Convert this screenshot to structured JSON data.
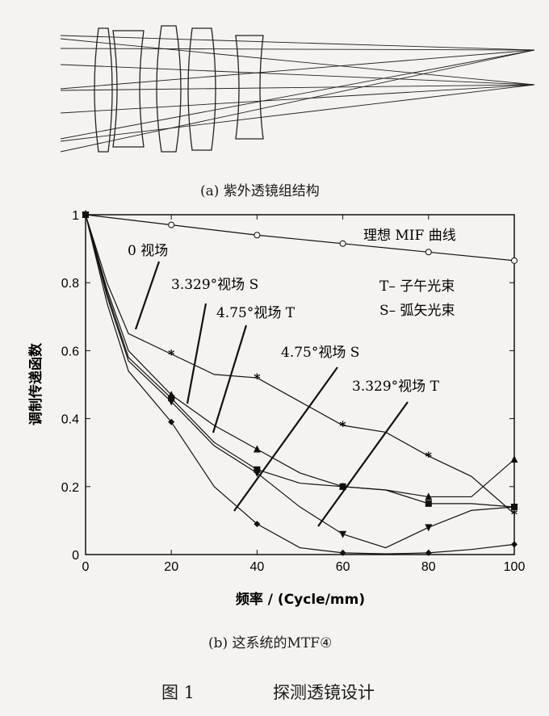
{
  "caption_a": "(a) 紫外透镜组结构",
  "caption_b": "(b) 这系统的MTF④",
  "figure_label": "图 1",
  "figure_title": "探测透镜设计",
  "chart_data": {
    "type": "line",
    "xlabel": "频率 / (Cycle/mm)",
    "ylabel": "调制传递函数",
    "xlim": [
      0,
      100
    ],
    "ylim": [
      0,
      1
    ],
    "xticks": [
      "0",
      "20",
      "40",
      "60",
      "80",
      "100"
    ],
    "yticks": [
      "0",
      "0.2",
      "0.4",
      "0.6",
      "0.8",
      "1"
    ],
    "grid": false,
    "annotations": [
      "理想 MIF 曲线",
      "0 视场",
      "3.329°视场 S",
      "4.75°视场 T",
      "4.75°视场 S",
      "3.329°视场 T",
      "T– 子午光束",
      "S– 弧矢光束"
    ],
    "series": [
      {
        "marker": "circle",
        "x": [
          0,
          20,
          40,
          60,
          80,
          100
        ],
        "y": [
          1,
          0.97,
          0.94,
          0.915,
          0.89,
          0.865
        ]
      },
      {
        "marker": "asterisk",
        "x": [
          0,
          5,
          10,
          20,
          30,
          40,
          50,
          60,
          70,
          80,
          90,
          100
        ],
        "y": [
          1,
          0.8,
          0.65,
          0.59,
          0.53,
          0.52,
          0.45,
          0.38,
          0.36,
          0.29,
          0.23,
          0.12
        ]
      },
      {
        "marker": "triangle-up",
        "x": [
          0,
          5,
          10,
          20,
          30,
          40,
          50,
          60,
          70,
          80,
          90,
          100
        ],
        "y": [
          1,
          0.78,
          0.6,
          0.47,
          0.38,
          0.31,
          0.24,
          0.2,
          0.19,
          0.17,
          0.17,
          0.28
        ]
      },
      {
        "marker": "square",
        "x": [
          0,
          5,
          10,
          20,
          30,
          40,
          50,
          60,
          70,
          80,
          90,
          100
        ],
        "y": [
          1,
          0.77,
          0.58,
          0.46,
          0.33,
          0.25,
          0.21,
          0.2,
          0.19,
          0.15,
          0.15,
          0.14
        ]
      },
      {
        "marker": "triangle-down",
        "x": [
          0,
          5,
          10,
          20,
          30,
          40,
          50,
          60,
          70,
          80,
          90,
          100
        ],
        "y": [
          1,
          0.76,
          0.57,
          0.45,
          0.32,
          0.24,
          0.14,
          0.06,
          0.02,
          0.08,
          0.13,
          0.14
        ]
      },
      {
        "marker": "diamond",
        "x": [
          0,
          5,
          10,
          20,
          30,
          40,
          50,
          60,
          70,
          80,
          90,
          100
        ],
        "y": [
          1,
          0.74,
          0.54,
          0.39,
          0.2,
          0.09,
          0.02,
          0.005,
          0.002,
          0.005,
          0.015,
          0.03
        ]
      }
    ]
  }
}
